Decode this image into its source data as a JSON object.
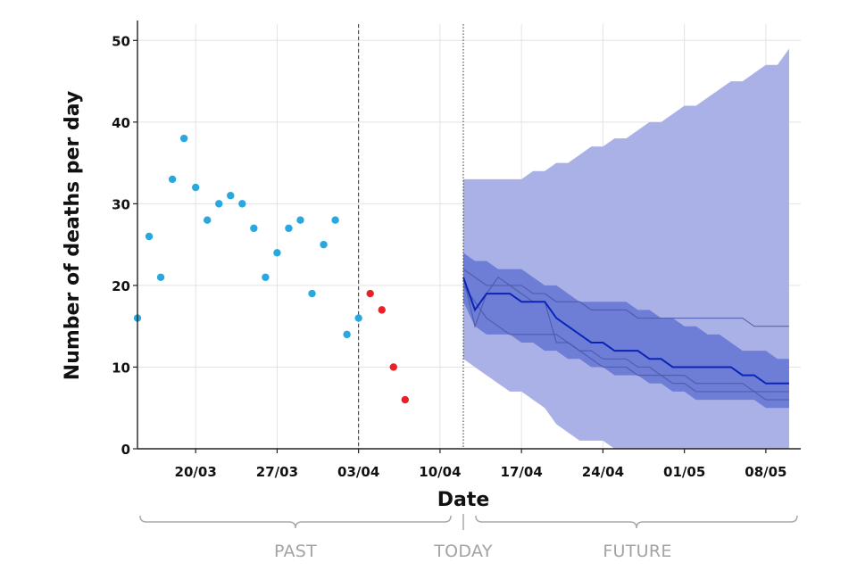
{
  "chart_data": {
    "type": "scatter",
    "xlabel": "Date",
    "ylabel": "Number of deaths per day",
    "xlim": [
      "2020-03-15",
      "2020-05-11"
    ],
    "ylim": [
      0,
      52
    ],
    "yticks": [
      0,
      10,
      20,
      30,
      40,
      50
    ],
    "xticks": [
      {
        "date": "2020-03-20",
        "label": "20/03"
      },
      {
        "date": "2020-03-27",
        "label": "27/03"
      },
      {
        "date": "2020-04-03",
        "label": "03/04"
      },
      {
        "date": "2020-04-10",
        "label": "10/04"
      },
      {
        "date": "2020-04-17",
        "label": "17/04"
      },
      {
        "date": "2020-04-24",
        "label": "24/04"
      },
      {
        "date": "2020-05-01",
        "label": "01/05"
      },
      {
        "date": "2020-05-08",
        "label": "08/05"
      }
    ],
    "grid": true,
    "reference_lines": [
      {
        "date": "2020-04-03",
        "style": "dashed"
      },
      {
        "date": "2020-04-12",
        "style": "dotted"
      }
    ],
    "period_labels": [
      "PAST",
      "TODAY",
      "FUTURE"
    ],
    "series": [
      {
        "kind": "points",
        "color": "#29a8e0",
        "points": [
          [
            "2020-03-15",
            16
          ],
          [
            "2020-03-16",
            26
          ],
          [
            "2020-03-17",
            21
          ],
          [
            "2020-03-18",
            33
          ],
          [
            "2020-03-19",
            38
          ],
          [
            "2020-03-20",
            32
          ],
          [
            "2020-03-21",
            28
          ],
          [
            "2020-03-22",
            30
          ],
          [
            "2020-03-23",
            31
          ],
          [
            "2020-03-24",
            30
          ],
          [
            "2020-03-25",
            27
          ],
          [
            "2020-03-26",
            21
          ],
          [
            "2020-03-27",
            24
          ],
          [
            "2020-03-28",
            27
          ],
          [
            "2020-03-29",
            28
          ],
          [
            "2020-03-30",
            19
          ],
          [
            "2020-03-31",
            25
          ],
          [
            "2020-04-01",
            28
          ],
          [
            "2020-04-02",
            14
          ],
          [
            "2020-04-03",
            16
          ]
        ]
      },
      {
        "kind": "points",
        "color": "#e8202a",
        "points": [
          [
            "2020-04-04",
            19
          ],
          [
            "2020-04-05",
            17
          ],
          [
            "2020-04-06",
            10
          ],
          [
            "2020-04-07",
            6
          ]
        ]
      },
      {
        "kind": "band",
        "color": "#aab1e6",
        "dates": [
          "2020-04-12",
          "2020-04-13",
          "2020-04-14",
          "2020-04-15",
          "2020-04-16",
          "2020-04-17",
          "2020-04-18",
          "2020-04-19",
          "2020-04-20",
          "2020-04-21",
          "2020-04-22",
          "2020-04-23",
          "2020-04-24",
          "2020-04-25",
          "2020-04-26",
          "2020-04-27",
          "2020-04-28",
          "2020-04-29",
          "2020-04-30",
          "2020-05-01",
          "2020-05-02",
          "2020-05-03",
          "2020-05-04",
          "2020-05-05",
          "2020-05-06",
          "2020-05-07",
          "2020-05-08",
          "2020-05-09",
          "2020-05-10"
        ],
        "upper": [
          33,
          33,
          33,
          33,
          33,
          33,
          34,
          34,
          35,
          35,
          36,
          37,
          37,
          38,
          38,
          39,
          40,
          40,
          41,
          42,
          42,
          43,
          44,
          45,
          45,
          46,
          47,
          47,
          49
        ],
        "lower": [
          11,
          10,
          9,
          8,
          7,
          7,
          6,
          5,
          3,
          2,
          1,
          1,
          1,
          0,
          0,
          0,
          0,
          0,
          0,
          0,
          0,
          0,
          0,
          0,
          0,
          0,
          0,
          0,
          0
        ]
      },
      {
        "kind": "band",
        "color": "#6e7ed6",
        "dates": [
          "2020-04-12",
          "2020-04-13",
          "2020-04-14",
          "2020-04-15",
          "2020-04-16",
          "2020-04-17",
          "2020-04-18",
          "2020-04-19",
          "2020-04-20",
          "2020-04-21",
          "2020-04-22",
          "2020-04-23",
          "2020-04-24",
          "2020-04-25",
          "2020-04-26",
          "2020-04-27",
          "2020-04-28",
          "2020-04-29",
          "2020-04-30",
          "2020-05-01",
          "2020-05-02",
          "2020-05-03",
          "2020-05-04",
          "2020-05-05",
          "2020-05-06",
          "2020-05-07",
          "2020-05-08",
          "2020-05-09",
          "2020-05-10"
        ],
        "upper": [
          24,
          23,
          23,
          22,
          22,
          22,
          21,
          20,
          20,
          19,
          18,
          18,
          18,
          18,
          18,
          17,
          17,
          16,
          16,
          15,
          15,
          14,
          14,
          13,
          12,
          12,
          12,
          11,
          11
        ],
        "lower": [
          18,
          15,
          14,
          14,
          14,
          13,
          13,
          12,
          12,
          11,
          11,
          10,
          10,
          9,
          9,
          9,
          8,
          8,
          7,
          7,
          6,
          6,
          6,
          6,
          6,
          6,
          5,
          5,
          5
        ]
      },
      {
        "kind": "line",
        "color": "#4a58a8",
        "dates": [
          "2020-04-12",
          "2020-04-13",
          "2020-04-14",
          "2020-04-15",
          "2020-04-16",
          "2020-04-17",
          "2020-04-18",
          "2020-04-19",
          "2020-04-20",
          "2020-04-21",
          "2020-04-22",
          "2020-04-23",
          "2020-04-24",
          "2020-04-25",
          "2020-04-26",
          "2020-04-27",
          "2020-04-28",
          "2020-04-29",
          "2020-04-30",
          "2020-05-01",
          "2020-05-02",
          "2020-05-03",
          "2020-05-04",
          "2020-05-05",
          "2020-05-06",
          "2020-05-07",
          "2020-05-08",
          "2020-05-09",
          "2020-05-10"
        ],
        "values": [
          22,
          21,
          20,
          20,
          20,
          20,
          19,
          19,
          18,
          18,
          18,
          17,
          17,
          17,
          17,
          16,
          16,
          16,
          16,
          16,
          16,
          16,
          16,
          16,
          16,
          15,
          15,
          15,
          15
        ]
      },
      {
        "kind": "line",
        "color": "#4a58a8",
        "dates": [
          "2020-04-12",
          "2020-04-13",
          "2020-04-14",
          "2020-04-15",
          "2020-04-16",
          "2020-04-17",
          "2020-04-18",
          "2020-04-19",
          "2020-04-20",
          "2020-04-21",
          "2020-04-22",
          "2020-04-23",
          "2020-04-24",
          "2020-04-25",
          "2020-04-26",
          "2020-04-27",
          "2020-04-28",
          "2020-04-29",
          "2020-04-30",
          "2020-05-01",
          "2020-05-02",
          "2020-05-03",
          "2020-05-04",
          "2020-05-05",
          "2020-05-06",
          "2020-05-07",
          "2020-05-08",
          "2020-05-09",
          "2020-05-10"
        ],
        "values": [
          21,
          15,
          19,
          21,
          20,
          19,
          18,
          18,
          13,
          13,
          12,
          12,
          11,
          11,
          11,
          10,
          10,
          9,
          9,
          9,
          8,
          8,
          8,
          8,
          8,
          7,
          7,
          7,
          7
        ]
      },
      {
        "kind": "line",
        "color": "#4a58a8",
        "dates": [
          "2020-04-12",
          "2020-04-13",
          "2020-04-14",
          "2020-04-15",
          "2020-04-16",
          "2020-04-17",
          "2020-04-18",
          "2020-04-19",
          "2020-04-20",
          "2020-04-21",
          "2020-04-22",
          "2020-04-23",
          "2020-04-24",
          "2020-04-25",
          "2020-04-26",
          "2020-04-27",
          "2020-04-28",
          "2020-04-29",
          "2020-04-30",
          "2020-05-01",
          "2020-05-02",
          "2020-05-03",
          "2020-05-04",
          "2020-05-05",
          "2020-05-06",
          "2020-05-07",
          "2020-05-08",
          "2020-05-09",
          "2020-05-10"
        ],
        "values": [
          20,
          18,
          16,
          15,
          14,
          14,
          14,
          14,
          14,
          13,
          12,
          11,
          10,
          10,
          10,
          9,
          9,
          9,
          8,
          8,
          7,
          7,
          7,
          7,
          7,
          7,
          6,
          6,
          6
        ]
      },
      {
        "kind": "line",
        "color": "#0b24b8",
        "dates": [
          "2020-04-12",
          "2020-04-13",
          "2020-04-14",
          "2020-04-15",
          "2020-04-16",
          "2020-04-17",
          "2020-04-18",
          "2020-04-19",
          "2020-04-20",
          "2020-04-21",
          "2020-04-22",
          "2020-04-23",
          "2020-04-24",
          "2020-04-25",
          "2020-04-26",
          "2020-04-27",
          "2020-04-28",
          "2020-04-29",
          "2020-04-30",
          "2020-05-01",
          "2020-05-02",
          "2020-05-03",
          "2020-05-04",
          "2020-05-05",
          "2020-05-06",
          "2020-05-07",
          "2020-05-08",
          "2020-05-09",
          "2020-05-10"
        ],
        "values": [
          21,
          17,
          19,
          19,
          19,
          18,
          18,
          18,
          16,
          15,
          14,
          13,
          13,
          12,
          12,
          12,
          11,
          11,
          10,
          10,
          10,
          10,
          10,
          10,
          9,
          9,
          8,
          8,
          8
        ]
      }
    ]
  }
}
